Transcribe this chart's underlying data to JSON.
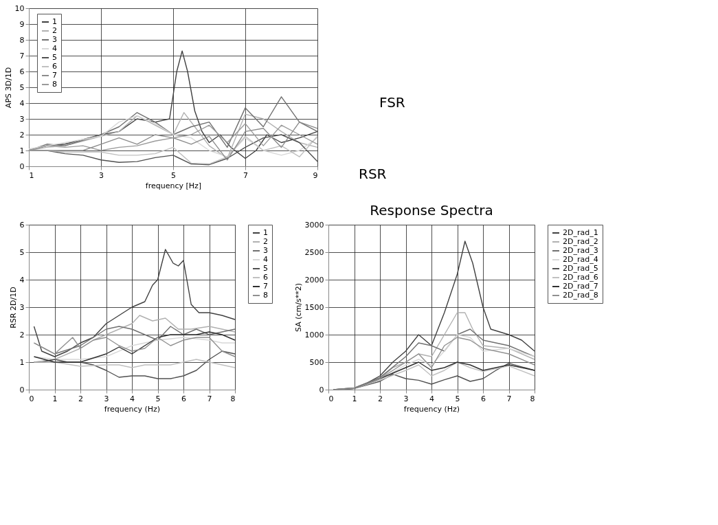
{
  "chart_data": [
    {
      "type": "line",
      "xlabel": "frequency [Hz]",
      "ylabel": "APS 3D/1D",
      "xlim": [
        1,
        9
      ],
      "xticks": [
        1,
        3,
        5,
        7,
        9
      ],
      "ylim": [
        0,
        10
      ],
      "yticks": [
        0,
        1,
        2,
        3,
        4,
        5,
        6,
        7,
        8,
        9,
        10
      ],
      "grid": true,
      "legend": "top left",
      "line_style": "solid",
      "marker": "none",
      "annotations": [
        "FSR",
        "RSR"
      ],
      "series": [
        {
          "name": "1",
          "color": "#404040",
          "x": [
            1,
            1.5,
            2,
            2.5,
            3,
            3.5,
            4,
            4.5,
            4.9,
            5,
            5.1,
            5.25,
            5.4,
            5.6,
            5.8,
            6,
            6.3,
            6.6,
            7,
            7.3,
            7.6,
            8,
            8.5,
            9
          ],
          "values": [
            1,
            1.3,
            1.4,
            1.7,
            2,
            2.2,
            3.0,
            2.8,
            3.0,
            4.5,
            6,
            7.3,
            6,
            3.5,
            2.2,
            1.5,
            2,
            1.2,
            0.5,
            1.0,
            2.0,
            1.5,
            1.8,
            2.2
          ]
        },
        {
          "name": "2",
          "color": "#b0b0b0",
          "x": [
            1,
            1.5,
            2,
            2.5,
            3,
            3.5,
            4,
            4.5,
            5,
            5.3,
            5.6,
            6,
            6.5,
            7,
            7.5,
            8,
            8.5,
            9
          ],
          "values": [
            1,
            1.2,
            1.3,
            1.6,
            1.9,
            2.2,
            3.2,
            2.6,
            2.0,
            3.4,
            2.5,
            1.3,
            0.5,
            3.3,
            3,
            2.2,
            1.5,
            1.2
          ]
        },
        {
          "name": "3",
          "color": "#707070",
          "x": [
            1,
            1.5,
            2,
            3,
            3.5,
            4,
            4.5,
            5,
            5.5,
            6,
            6.5,
            7,
            7.5,
            8,
            8.5,
            9
          ],
          "values": [
            1,
            1.4,
            1.3,
            2,
            2.5,
            3.4,
            2.8,
            2.0,
            2.5,
            2.8,
            1.2,
            3.7,
            2.5,
            4.4,
            2.8,
            2.2
          ]
        },
        {
          "name": "4",
          "color": "#d8d8d8",
          "x": [
            1,
            2,
            3,
            3.5,
            4,
            4.5,
            5,
            5.5,
            6,
            6.5,
            7,
            7.5,
            8,
            8.5,
            9
          ],
          "values": [
            1.1,
            1.5,
            1.9,
            2.8,
            3.2,
            2.7,
            2.0,
            1.8,
            1.0,
            0.6,
            1.8,
            1.0,
            0.7,
            1.0,
            1.8
          ]
        },
        {
          "name": "5",
          "color": "#505050",
          "x": [
            1,
            1.5,
            2,
            2.5,
            3,
            3.5,
            4,
            4.5,
            5,
            5.5,
            6,
            6.5,
            7,
            7.5,
            8,
            8.5,
            9
          ],
          "values": [
            1,
            1.0,
            0.8,
            0.7,
            0.4,
            0.25,
            0.3,
            0.55,
            0.7,
            0.15,
            0.1,
            0.5,
            1.2,
            1.8,
            2.0,
            1.5,
            0.3
          ]
        },
        {
          "name": "6",
          "color": "#c0c0c0",
          "x": [
            1,
            1.5,
            2,
            2.5,
            3,
            3.5,
            4,
            4.5,
            5,
            5.5,
            6,
            6.5,
            7,
            7.5,
            8,
            8.5,
            9
          ],
          "values": [
            1,
            1.0,
            0.9,
            0.9,
            0.9,
            0.7,
            0.7,
            0.8,
            1.2,
            0.2,
            0.15,
            0.6,
            1.9,
            1.0,
            1.3,
            0.6,
            1.9
          ]
        },
        {
          "name": "7",
          "color": "#8c8c8c",
          "x": [
            1,
            1.5,
            2,
            2.5,
            3,
            3.5,
            4,
            4.5,
            5,
            5.5,
            6,
            6.5,
            7,
            7.5,
            8,
            8.5,
            9
          ],
          "values": [
            1,
            1.0,
            1.0,
            1.0,
            1.4,
            1.8,
            1.4,
            2.0,
            1.8,
            1.4,
            1.9,
            0.4,
            2.2,
            2.4,
            1.2,
            2.8,
            2.4
          ]
        },
        {
          "name": "8",
          "color": "#9a9a9a",
          "x": [
            1,
            1.5,
            2,
            2.5,
            3,
            3.5,
            4,
            4.5,
            5,
            5.5,
            6,
            6.5,
            7,
            7.5,
            8,
            8.5,
            9
          ],
          "values": [
            1,
            1.3,
            1.2,
            1.3,
            1.0,
            1.2,
            1.3,
            1.6,
            1.8,
            2.0,
            2.6,
            1.5,
            2.7,
            1.3,
            2.6,
            2.0,
            1.4
          ]
        }
      ]
    },
    {
      "type": "line",
      "xlabel": "frequency (Hz)",
      "ylabel": "RSR 2D/1D",
      "xlim": [
        0,
        8
      ],
      "xticks": [
        0,
        1,
        2,
        3,
        4,
        5,
        6,
        7,
        8
      ],
      "ylim": [
        0,
        6
      ],
      "yticks": [
        0,
        1,
        2,
        3,
        4,
        5,
        6
      ],
      "grid": true,
      "legend": "right",
      "line_style": "solid",
      "marker": "none",
      "series": [
        {
          "name": "1",
          "color": "#404040",
          "x": [
            0.2,
            0.5,
            1,
            1.5,
            2,
            2.5,
            3,
            3.5,
            4,
            4.5,
            4.8,
            5,
            5.3,
            5.6,
            5.8,
            6,
            6.3,
            6.6,
            7,
            7.5,
            8
          ],
          "values": [
            2.3,
            1.4,
            1.2,
            1.4,
            1.7,
            1.9,
            2.4,
            2.7,
            3.0,
            3.2,
            3.8,
            4.0,
            5.1,
            4.6,
            4.5,
            4.7,
            3.1,
            2.8,
            2.8,
            2.7,
            2.55
          ]
        },
        {
          "name": "2",
          "color": "#b0b0b0",
          "x": [
            0.2,
            1,
            2,
            2.5,
            3,
            3.5,
            4,
            4.3,
            4.8,
            5.3,
            5.8,
            6.3,
            7,
            7.5,
            8
          ],
          "values": [
            1.0,
            1.1,
            1.5,
            1.8,
            2.0,
            2.2,
            2.4,
            2.7,
            2.5,
            2.6,
            2.2,
            2.2,
            2.3,
            2.2,
            2.1
          ]
        },
        {
          "name": "3",
          "color": "#707070",
          "x": [
            0.2,
            1,
            2,
            3,
            3.5,
            4,
            4.5,
            5,
            5.5,
            6,
            6.5,
            7,
            8
          ],
          "values": [
            1.7,
            1.3,
            1.6,
            2.2,
            2.3,
            2.2,
            2.0,
            1.8,
            2.3,
            2.0,
            2.2,
            2.0,
            2.2
          ]
        },
        {
          "name": "4",
          "color": "#d8d8d8",
          "x": [
            0.2,
            1,
            2,
            3,
            4,
            5,
            6,
            7,
            7.5,
            8
          ],
          "values": [
            1.2,
            1.1,
            1.1,
            1.2,
            1.6,
            1.8,
            1.9,
            1.8,
            1.7,
            1.7
          ]
        },
        {
          "name": "5",
          "color": "#505050",
          "x": [
            0.2,
            0.5,
            1,
            1.5,
            2,
            2.5,
            3,
            3.5,
            4,
            4.5,
            5,
            5.5,
            6,
            6.5,
            7,
            7.5,
            8
          ],
          "values": [
            1.0,
            1.0,
            1.1,
            1.0,
            1.0,
            0.9,
            0.7,
            0.45,
            0.5,
            0.5,
            0.4,
            0.4,
            0.5,
            0.7,
            1.1,
            1.4,
            1.3
          ]
        },
        {
          "name": "6",
          "color": "#c0c0c0",
          "x": [
            0.2,
            1,
            2,
            3,
            3.5,
            4,
            4.5,
            5,
            5.5,
            6,
            6.5,
            7,
            8
          ],
          "values": [
            1.0,
            1.0,
            0.85,
            0.9,
            0.9,
            0.8,
            0.9,
            0.9,
            0.9,
            1.0,
            1.1,
            1.0,
            0.8
          ]
        },
        {
          "name": "7",
          "color": "#303030",
          "x": [
            0.2,
            1,
            2,
            3,
            3.5,
            4,
            4.5,
            5,
            5.5,
            6,
            6.5,
            7,
            7.5,
            8
          ],
          "values": [
            1.2,
            1.0,
            1.0,
            1.3,
            1.55,
            1.3,
            1.6,
            1.9,
            2.0,
            2.0,
            2.0,
            2.1,
            2.0,
            1.8
          ]
        },
        {
          "name": "8",
          "color": "#909090",
          "x": [
            0.2,
            1,
            1.7,
            2,
            2.5,
            3,
            3.5,
            4,
            4.5,
            5,
            5.5,
            6,
            6.5,
            7,
            7.5,
            8
          ],
          "values": [
            1.7,
            1.3,
            1.9,
            1.5,
            1.8,
            1.9,
            1.6,
            1.4,
            1.5,
            1.9,
            1.6,
            1.8,
            1.9,
            1.9,
            1.4,
            1.2
          ]
        }
      ]
    },
    {
      "type": "line",
      "title": "Response Spectra",
      "xlabel": "frequency (Hz)",
      "ylabel": "SA (cm/s**2)",
      "xlim": [
        0,
        8
      ],
      "xticks": [
        0,
        1,
        2,
        3,
        4,
        5,
        6,
        7,
        8
      ],
      "ylim": [
        0,
        3000
      ],
      "yticks": [
        0,
        500,
        1000,
        1500,
        2000,
        2500,
        3000
      ],
      "grid": true,
      "legend": "right",
      "line_style": "solid",
      "marker": "none",
      "series": [
        {
          "name": "2D_rad_1",
          "color": "#404040",
          "x": [
            0.2,
            1,
            1.5,
            2,
            2.5,
            3,
            3.5,
            4,
            4.5,
            5,
            5.3,
            5.6,
            6,
            6.3,
            7,
            7.5,
            8
          ],
          "values": [
            0,
            30,
            120,
            250,
            500,
            700,
            1000,
            800,
            1400,
            2100,
            2700,
            2300,
            1500,
            1100,
            1000,
            900,
            700
          ]
        },
        {
          "name": "2D_rad_2",
          "color": "#b0b0b0",
          "x": [
            0.2,
            1,
            2,
            2.5,
            3,
            3.5,
            4,
            4.5,
            5,
            5.3,
            5.6,
            6,
            7,
            8
          ],
          "values": [
            0,
            30,
            200,
            400,
            500,
            650,
            600,
            1000,
            1400,
            1400,
            1100,
            800,
            750,
            550
          ]
        },
        {
          "name": "2D_rad_3",
          "color": "#707070",
          "x": [
            0.2,
            1,
            2,
            3,
            3.5,
            4,
            4.5,
            5,
            5.5,
            6,
            6.5,
            7,
            8
          ],
          "values": [
            0,
            30,
            220,
            600,
            850,
            800,
            700,
            1000,
            1100,
            900,
            850,
            800,
            600
          ]
        },
        {
          "name": "2D_rad_4",
          "color": "#d8d8d8",
          "x": [
            0.2,
            1,
            2,
            3,
            3.5,
            4,
            4.5,
            5,
            5.5,
            6,
            7,
            8
          ],
          "values": [
            0,
            20,
            180,
            450,
            550,
            450,
            700,
            1000,
            950,
            700,
            750,
            600
          ]
        },
        {
          "name": "2D_rad_5",
          "color": "#505050",
          "x": [
            0.2,
            1,
            2,
            2.5,
            3,
            3.5,
            4,
            4.5,
            5,
            5.5,
            6,
            6.5,
            7,
            8
          ],
          "values": [
            0,
            20,
            150,
            280,
            200,
            170,
            100,
            180,
            250,
            150,
            200,
            350,
            480,
            350
          ]
        },
        {
          "name": "2D_rad_6",
          "color": "#c0c0c0",
          "x": [
            0.2,
            1,
            2,
            3,
            3.5,
            4,
            4.5,
            5,
            5.5,
            6,
            7,
            8
          ],
          "values": [
            0,
            20,
            170,
            350,
            450,
            250,
            350,
            500,
            400,
            330,
            430,
            250
          ]
        },
        {
          "name": "2D_rad_7",
          "color": "#303030",
          "x": [
            0.2,
            1,
            2,
            3,
            3.5,
            4,
            4.5,
            5,
            5.5,
            6,
            7,
            8
          ],
          "values": [
            0,
            20,
            200,
            400,
            500,
            350,
            400,
            500,
            450,
            350,
            450,
            350
          ]
        },
        {
          "name": "2D_rad_8",
          "color": "#909090",
          "x": [
            0.2,
            1,
            2,
            3,
            3.5,
            4,
            4.5,
            5,
            5.5,
            6,
            7,
            8
          ],
          "values": [
            0,
            20,
            200,
            500,
            650,
            400,
            800,
            950,
            900,
            750,
            650,
            450
          ]
        }
      ]
    }
  ]
}
